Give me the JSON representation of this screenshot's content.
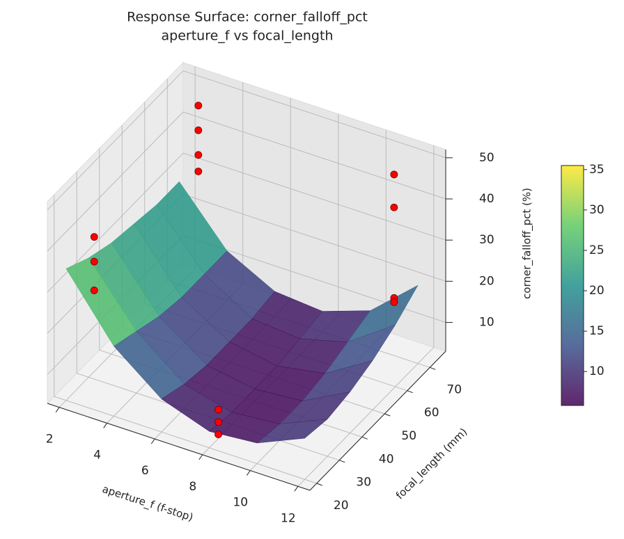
{
  "chart_data": {
    "type": "surface3d",
    "title": "Response Surface: corner_falloff_pct",
    "subtitle": "aperture_f vs focal_length",
    "xlabel": "aperture_f (f-stop)",
    "ylabel": "focal_length (mm)",
    "zlabel": "corner_falloff_pct (%)",
    "xlim": [
      1.5,
      12.5
    ],
    "ylim": [
      17,
      77
    ],
    "zlim": [
      3,
      52
    ],
    "xticks": [
      2,
      4,
      6,
      8,
      10,
      12
    ],
    "yticks": [
      20,
      30,
      40,
      50,
      60,
      70
    ],
    "zticks": [
      10,
      20,
      30,
      40,
      50
    ],
    "grid": true,
    "surface": {
      "colormap": "viridis",
      "alpha": 0.85,
      "x": [
        2,
        4,
        6,
        8,
        10,
        12
      ],
      "y": [
        20,
        30,
        40,
        50,
        60,
        70
      ],
      "z": [
        [
          35,
          20,
          11,
          7,
          8,
          13
        ],
        [
          32,
          18,
          9,
          6,
          7,
          12
        ],
        [
          30,
          16,
          8,
          6,
          7,
          13
        ],
        [
          29,
          15,
          8,
          6,
          8,
          15
        ],
        [
          28,
          15,
          8,
          7,
          10,
          18
        ],
        [
          28,
          15,
          9,
          8,
          12,
          22
        ]
      ]
    },
    "points": {
      "color": "#ff0000",
      "x": [
        2.8,
        2.8,
        2.8,
        2.8,
        2.8,
        2.8,
        2.8,
        8,
        8,
        8,
        11,
        11,
        11,
        11
      ],
      "y": [
        24,
        24,
        24,
        70,
        70,
        70,
        70,
        24,
        24,
        24,
        70,
        70,
        70,
        70
      ],
      "z": [
        42,
        36,
        29,
        48,
        42,
        36,
        32,
        10,
        7,
        4,
        47,
        39,
        17,
        16
      ]
    },
    "colorbar": {
      "lim": [
        5.8,
        35.5
      ],
      "ticks": [
        10,
        15,
        20,
        25,
        30,
        35
      ]
    }
  }
}
